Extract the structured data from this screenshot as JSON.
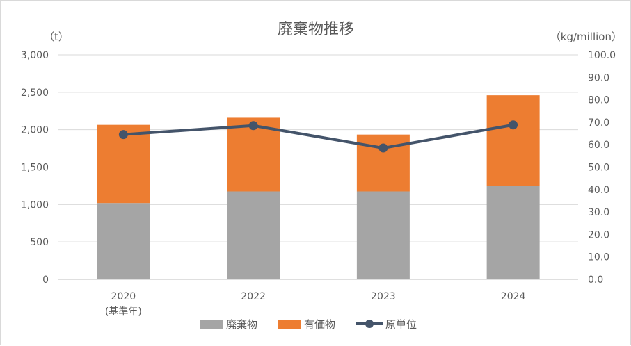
{
  "chart_data": {
    "type": "bar",
    "title": "廃棄物推移",
    "categories": [
      "2020",
      "2022",
      "2023",
      "2024"
    ],
    "category_sublabels": [
      "(基準年)",
      "",
      "",
      ""
    ],
    "left_axis_unit": "（t）",
    "right_axis_unit": "（kg/million）",
    "left_ticks": [
      "0",
      "500",
      "1,000",
      "1,500",
      "2,000",
      "2,500",
      "3,000"
    ],
    "right_ticks": [
      "0.0",
      "10.0",
      "20.0",
      "30.0",
      "40.0",
      "50.0",
      "60.0",
      "70.0",
      "80.0",
      "90.0",
      "100.0"
    ],
    "ylim": [
      0,
      3000
    ],
    "y2lim": [
      0,
      100
    ],
    "stacked": true,
    "series": [
      {
        "name": "廃棄物",
        "kind": "bar",
        "axis": "left",
        "color": "#a5a5a5",
        "values": [
          1020,
          1175,
          1175,
          1250
        ]
      },
      {
        "name": "有価物",
        "kind": "bar",
        "axis": "left",
        "color": "#ed7d31",
        "values": [
          1045,
          985,
          760,
          1210
        ]
      },
      {
        "name": "原単位",
        "kind": "line",
        "axis": "right",
        "color": "#44546a",
        "values": [
          64.5,
          68.5,
          58.5,
          68.8
        ]
      }
    ],
    "grid": true,
    "legend_position": "bottom"
  }
}
